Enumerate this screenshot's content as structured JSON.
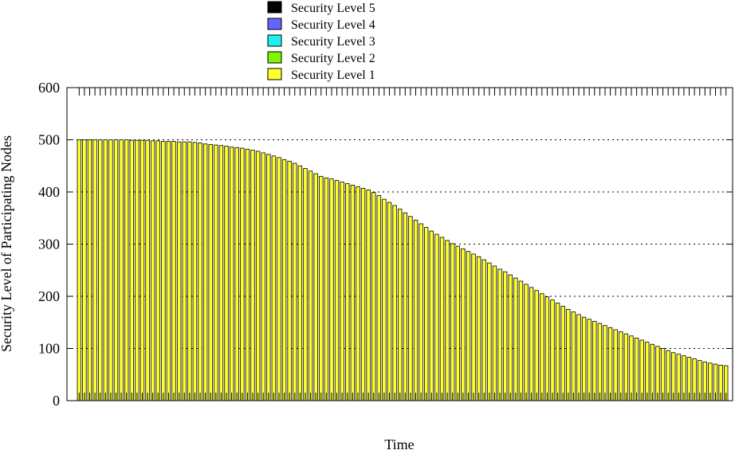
{
  "chart_data": {
    "type": "bar",
    "title": "",
    "xlabel": "Time",
    "ylabel": "Security Level of Participating Nodes",
    "ylim": [
      0,
      600
    ],
    "yticks": [
      0,
      100,
      200,
      300,
      400,
      500,
      600
    ],
    "grid": "horizontal dotted",
    "legend_position": "top-center",
    "stacked": true,
    "series": [
      {
        "name": "Security Level 5",
        "color": "#000000",
        "values": []
      },
      {
        "name": "Security Level 4",
        "color": "#6464ff",
        "values": []
      },
      {
        "name": "Security Level 3",
        "color": "#1ef0f0",
        "values": []
      },
      {
        "name": "Security Level 2",
        "color": "#7ff500",
        "values": []
      },
      {
        "name": "Security Level 1",
        "color": "#ffff2a",
        "values": [
          500,
          500,
          500,
          500,
          500,
          500,
          500,
          500,
          500,
          500,
          499,
          499,
          499,
          499,
          498,
          498,
          497,
          497,
          497,
          496,
          496,
          496,
          495,
          494,
          492,
          491,
          490,
          489,
          488,
          486,
          485,
          484,
          482,
          480,
          478,
          475,
          472,
          469,
          466,
          462,
          459,
          455,
          450,
          445,
          440,
          435,
          430,
          427,
          425,
          422,
          419,
          416,
          413,
          410,
          407,
          404,
          399,
          393,
          386,
          380,
          374,
          367,
          360,
          353,
          346,
          339,
          332,
          325,
          319,
          313,
          307,
          301,
          296,
          291,
          286,
          281,
          276,
          270,
          264,
          258,
          252,
          247,
          241,
          235,
          229,
          223,
          217,
          211,
          205,
          199,
          193,
          187,
          181,
          175,
          170,
          165,
          160,
          156,
          152,
          148,
          144,
          140,
          136,
          132,
          128,
          124,
          120,
          116,
          112,
          108,
          104,
          100,
          96,
          92,
          89,
          86,
          83,
          80,
          77,
          74,
          72,
          70,
          68,
          67
        ]
      }
    ]
  }
}
